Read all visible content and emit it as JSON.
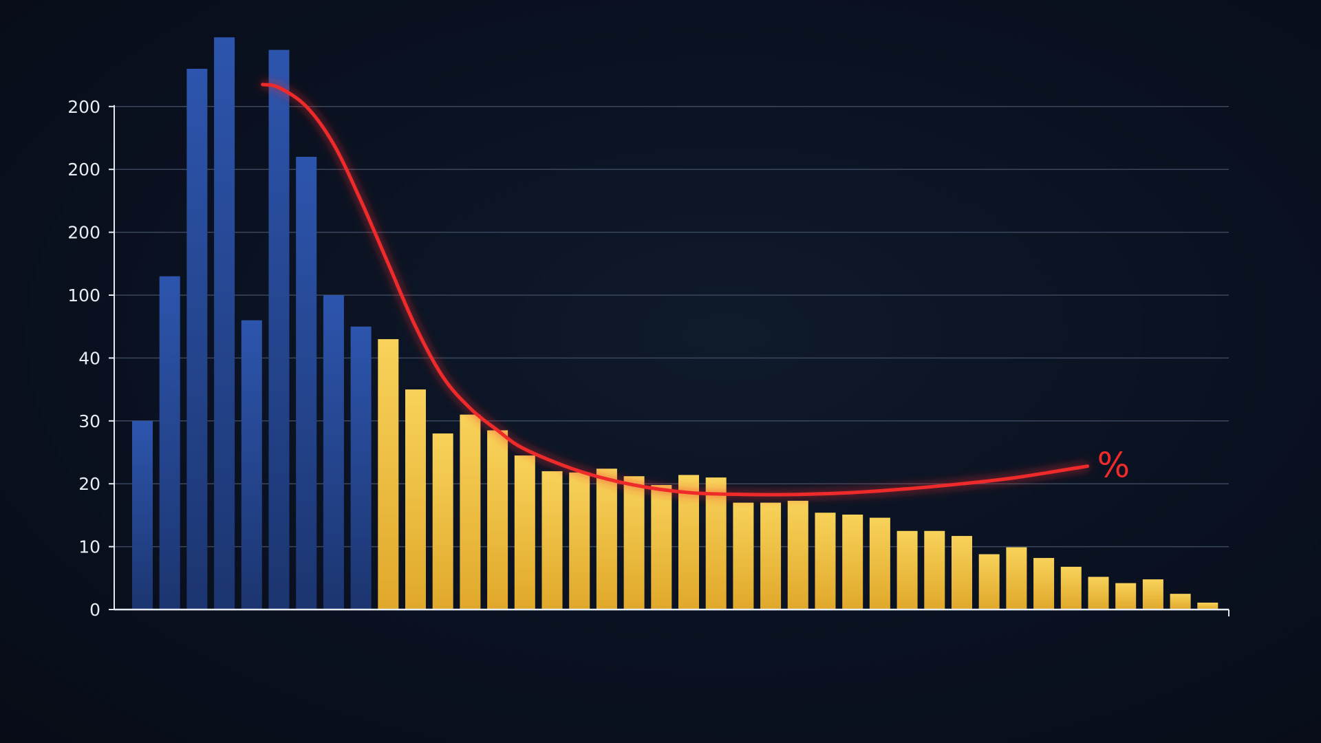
{
  "chart_data": {
    "type": "bar",
    "title": "",
    "xlabel": "",
    "ylabel": "",
    "grid": true,
    "y_tick_labels": [
      "0",
      "10",
      "20",
      "30",
      "40",
      "100",
      "200",
      "200",
      "200"
    ],
    "bars": [
      {
        "value": 3.0,
        "group": "blue"
      },
      {
        "value": 5.3,
        "group": "blue"
      },
      {
        "value": 8.6,
        "group": "blue"
      },
      {
        "value": 9.1,
        "group": "blue"
      },
      {
        "value": 4.6,
        "group": "blue"
      },
      {
        "value": 8.9,
        "group": "blue"
      },
      {
        "value": 7.2,
        "group": "blue"
      },
      {
        "value": 5.0,
        "group": "blue"
      },
      {
        "value": 4.5,
        "group": "blue"
      },
      {
        "value": 4.3,
        "group": "yellow"
      },
      {
        "value": 3.5,
        "group": "yellow"
      },
      {
        "value": 2.8,
        "group": "yellow"
      },
      {
        "value": 3.1,
        "group": "yellow"
      },
      {
        "value": 2.85,
        "group": "yellow"
      },
      {
        "value": 2.45,
        "group": "yellow"
      },
      {
        "value": 2.2,
        "group": "yellow"
      },
      {
        "value": 2.18,
        "group": "yellow"
      },
      {
        "value": 2.24,
        "group": "yellow"
      },
      {
        "value": 2.12,
        "group": "yellow"
      },
      {
        "value": 1.98,
        "group": "yellow"
      },
      {
        "value": 2.14,
        "group": "yellow"
      },
      {
        "value": 2.1,
        "group": "yellow"
      },
      {
        "value": 1.7,
        "group": "yellow"
      },
      {
        "value": 1.7,
        "group": "yellow"
      },
      {
        "value": 1.73,
        "group": "yellow"
      },
      {
        "value": 1.54,
        "group": "yellow"
      },
      {
        "value": 1.51,
        "group": "yellow"
      },
      {
        "value": 1.46,
        "group": "yellow"
      },
      {
        "value": 1.25,
        "group": "yellow"
      },
      {
        "value": 1.25,
        "group": "yellow"
      },
      {
        "value": 1.17,
        "group": "yellow"
      },
      {
        "value": 0.88,
        "group": "yellow"
      },
      {
        "value": 0.99,
        "group": "yellow"
      },
      {
        "value": 0.82,
        "group": "yellow"
      },
      {
        "value": 0.68,
        "group": "yellow"
      },
      {
        "value": 0.52,
        "group": "yellow"
      },
      {
        "value": 0.42,
        "group": "yellow"
      },
      {
        "value": 0.48,
        "group": "yellow"
      },
      {
        "value": 0.25,
        "group": "yellow"
      },
      {
        "value": 0.11,
        "group": "yellow"
      }
    ],
    "trend_line": {
      "label": "%",
      "color": "#ef2b2b",
      "points": [
        [
          4.4,
          8.35
        ],
        [
          5.0,
          8.3
        ],
        [
          6.0,
          8.0
        ],
        [
          7.0,
          7.4
        ],
        [
          8.0,
          6.5
        ],
        [
          9.0,
          5.5
        ],
        [
          10.0,
          4.5
        ],
        [
          11.0,
          3.7
        ],
        [
          12.0,
          3.2
        ],
        [
          13.0,
          2.85
        ],
        [
          14.0,
          2.55
        ],
        [
          16.0,
          2.2
        ],
        [
          18.0,
          1.98
        ],
        [
          20.0,
          1.86
        ],
        [
          22.0,
          1.83
        ],
        [
          24.0,
          1.83
        ],
        [
          26.0,
          1.86
        ],
        [
          28.0,
          1.92
        ],
        [
          30.0,
          2.0
        ],
        [
          32.0,
          2.1
        ],
        [
          34.6,
          2.28
        ]
      ]
    },
    "colors": {
      "blue": "#26468f",
      "yellow": "#f3c444",
      "grid": "#3b475c",
      "axis": "#e6eaf2"
    }
  }
}
